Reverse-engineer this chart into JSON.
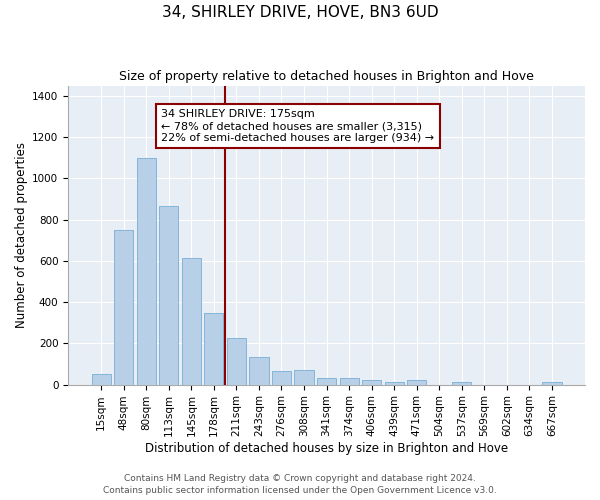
{
  "title": "34, SHIRLEY DRIVE, HOVE, BN3 6UD",
  "subtitle": "Size of property relative to detached houses in Brighton and Hove",
  "xlabel": "Distribution of detached houses by size in Brighton and Hove",
  "ylabel": "Number of detached properties",
  "footnote1": "Contains HM Land Registry data © Crown copyright and database right 2024.",
  "footnote2": "Contains public sector information licensed under the Open Government Licence v3.0.",
  "bar_labels": [
    "15sqm",
    "48sqm",
    "80sqm",
    "113sqm",
    "145sqm",
    "178sqm",
    "211sqm",
    "243sqm",
    "276sqm",
    "308sqm",
    "341sqm",
    "374sqm",
    "406sqm",
    "439sqm",
    "471sqm",
    "504sqm",
    "537sqm",
    "569sqm",
    "602sqm",
    "634sqm",
    "667sqm"
  ],
  "bar_values": [
    50,
    750,
    1100,
    865,
    615,
    345,
    225,
    135,
    65,
    70,
    30,
    30,
    22,
    15,
    20,
    0,
    15,
    0,
    0,
    0,
    15
  ],
  "bar_color": "#b8cfe8",
  "bar_edgecolor": "#7aadd4",
  "vline_x_index": 5,
  "vline_color": "#8b0000",
  "annotation_line1": "34 SHIRLEY DRIVE: 175sqm",
  "annotation_line2": "← 78% of detached houses are smaller (3,315)",
  "annotation_line3": "22% of semi-detached houses are larger (934) →",
  "annotation_box_edgecolor": "#8b0000",
  "ylim": [
    0,
    1450
  ],
  "yticks": [
    0,
    200,
    400,
    600,
    800,
    1000,
    1200,
    1400
  ],
  "plot_bg_color": "#e8eef5",
  "title_fontsize": 11,
  "subtitle_fontsize": 9,
  "xlabel_fontsize": 8.5,
  "ylabel_fontsize": 8.5,
  "tick_fontsize": 7.5,
  "annotation_fontsize": 8,
  "footnote_fontsize": 6.5
}
